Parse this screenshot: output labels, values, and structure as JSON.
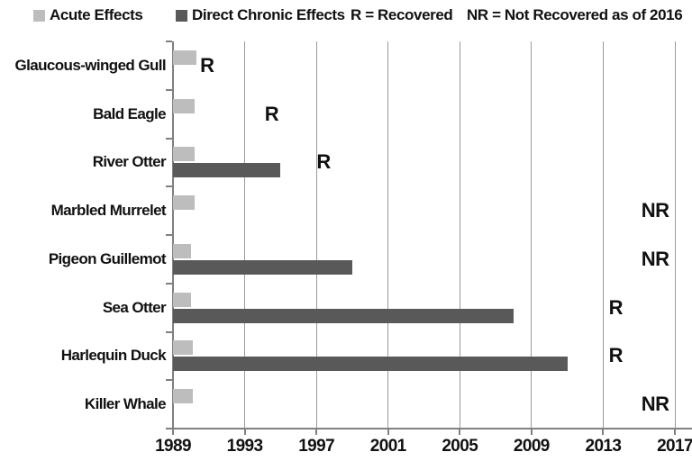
{
  "legend": {
    "items": [
      {
        "label": "Acute Effects",
        "swatch": "#bdbdbd"
      },
      {
        "label": "Direct Chronic Effects",
        "swatch": "#595959"
      },
      {
        "label": "R = Recovered"
      },
      {
        "label": "NR = Not Recovered as of 2016"
      }
    ]
  },
  "colors": {
    "acute": "#bdbdbd",
    "chronic": "#595959",
    "gridline": "#9a9a9a",
    "axis": "#808080",
    "text": "#111111"
  },
  "chart_data": {
    "type": "bar",
    "orientation": "horizontal",
    "title": "",
    "xlabel": "",
    "ylabel": "",
    "categories": [
      "Glaucous-winged Gull",
      "Bald Eagle",
      "River Otter",
      "Marbled Murrelet",
      "Pigeon Guillemot",
      "Sea Otter",
      "Harlequin Duck",
      "Killer Whale"
    ],
    "series": [
      {
        "name": "Acute Effects",
        "start_year": 1989,
        "end_years": [
          1990.3,
          1990.2,
          1990.2,
          1990.2,
          1990.0,
          1990.0,
          1990.1,
          1990.1
        ]
      },
      {
        "name": "Direct Chronic Effects",
        "start_year": 1989,
        "end_years": [
          null,
          null,
          1995,
          null,
          1999,
          2008,
          2011,
          null
        ]
      }
    ],
    "annotations": [
      {
        "category": "Glaucous-winged Gull",
        "label": "R",
        "year": 1990.9
      },
      {
        "category": "Bald Eagle",
        "label": "R",
        "year": 1994.5
      },
      {
        "category": "River Otter",
        "label": "R",
        "year": 1997.4
      },
      {
        "category": "Marbled Murrelet",
        "label": "NR",
        "year": 2015.9
      },
      {
        "category": "Pigeon Guillemot",
        "label": "NR",
        "year": 2015.9
      },
      {
        "category": "Sea Otter",
        "label": "R",
        "year": 2013.7
      },
      {
        "category": "Harlequin Duck",
        "label": "R",
        "year": 2013.7
      },
      {
        "category": "Killer Whale",
        "label": "NR",
        "year": 2015.9
      }
    ],
    "xticks": [
      1989,
      1993,
      1997,
      2001,
      2005,
      2009,
      2013,
      2017
    ],
    "xlim": [
      1989,
      2017
    ],
    "grid": true,
    "legend_position": "top"
  }
}
